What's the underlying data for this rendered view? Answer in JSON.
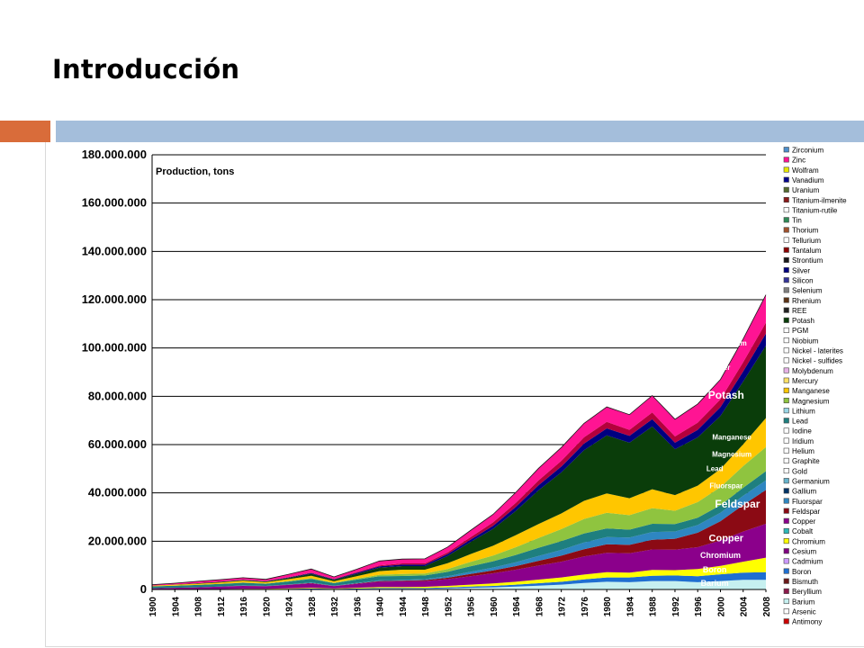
{
  "slide": {
    "title": "Introducción"
  },
  "colors": {
    "accent_orange": "#d96c3a",
    "accent_blue": "#a4bedb"
  },
  "chart_data": {
    "type": "area",
    "stacked": true,
    "title": "Production, tons",
    "xlabel": "",
    "ylabel": "",
    "ylim": [
      0,
      180000000
    ],
    "y_ticks": [
      0,
      20000000,
      40000000,
      60000000,
      80000000,
      100000000,
      120000000,
      140000000,
      160000000,
      180000000
    ],
    "y_tick_labels": [
      "0",
      "20.000.000",
      "40.000.000",
      "60.000.000",
      "80.000.000",
      "100.000.000",
      "120.000.000",
      "140.000.000",
      "160.000.000",
      "180.000.000"
    ],
    "x_tick_labels": [
      "1900",
      "1904",
      "1908",
      "1912",
      "1916",
      "1920",
      "1924",
      "1928",
      "1932",
      "1936",
      "1940",
      "1944",
      "1948",
      "1952",
      "1956",
      "1960",
      "1964",
      "1968",
      "1972",
      "1976",
      "1980",
      "1984",
      "1988",
      "1992",
      "1996",
      "2000",
      "2004",
      "2008"
    ],
    "grid": true,
    "legend_position": "right",
    "x": [
      1900,
      1904,
      1908,
      1912,
      1916,
      1920,
      1924,
      1928,
      1932,
      1936,
      1940,
      1944,
      1948,
      1952,
      1956,
      1960,
      1964,
      1968,
      1972,
      1976,
      1980,
      1984,
      1988,
      1992,
      1996,
      2000,
      2004,
      2008
    ],
    "series": [
      {
        "name": "Barium",
        "color": "#c6f0f0",
        "values": [
          0,
          0,
          0,
          0.1,
          0.1,
          0.1,
          0.2,
          0.2,
          0.1,
          0.2,
          0.3,
          0.3,
          0.3,
          0.5,
          0.7,
          0.9,
          1.2,
          1.6,
          2.0,
          2.7,
          3.2,
          3.0,
          3.5,
          3.5,
          3.0,
          3.5,
          4.0,
          4.0
        ]
      },
      {
        "name": "Boron",
        "color": "#1f6fd1",
        "values": [
          0,
          0,
          0,
          0,
          0.1,
          0.1,
          0.1,
          0.2,
          0.2,
          0.2,
          0.3,
          0.3,
          0.3,
          0.4,
          0.5,
          0.6,
          0.8,
          1.0,
          1.2,
          1.5,
          1.8,
          2.0,
          2.2,
          2.3,
          2.5,
          2.8,
          3.0,
          3.2
        ]
      },
      {
        "name": "Chromium",
        "color": "#ffff00",
        "values": [
          0,
          0.1,
          0.1,
          0.1,
          0.1,
          0.1,
          0.2,
          0.3,
          0.1,
          0.3,
          0.4,
          0.4,
          0.5,
          0.6,
          0.8,
          1.0,
          1.2,
          1.5,
          1.8,
          2.0,
          2.2,
          2.0,
          2.4,
          2.2,
          3.0,
          3.5,
          4.5,
          6.0
        ]
      },
      {
        "name": "Copper",
        "color": "#8b008b",
        "values": [
          0.5,
          0.6,
          0.8,
          1.0,
          1.2,
          1.0,
          1.4,
          1.8,
          1.0,
          1.6,
          2.2,
          2.4,
          2.4,
          2.8,
          3.5,
          4.2,
          5.0,
          5.8,
          6.5,
          7.5,
          8.0,
          8.0,
          8.5,
          8.5,
          9.0,
          10.5,
          12.5,
          14.0
        ]
      },
      {
        "name": "Feldspar",
        "color": "#8b0a14",
        "values": [
          0,
          0,
          0,
          0,
          0.1,
          0.1,
          0.1,
          0.2,
          0.1,
          0.2,
          0.3,
          0.3,
          0.4,
          0.6,
          0.9,
          1.2,
          1.5,
          2.0,
          2.5,
          3.0,
          3.5,
          3.5,
          4.0,
          4.5,
          6.0,
          8.0,
          11.0,
          14.0
        ]
      },
      {
        "name": "Fluorspar",
        "color": "#2e86c1",
        "values": [
          0,
          0,
          0,
          0,
          0.1,
          0.1,
          0.1,
          0.2,
          0.1,
          0.2,
          0.3,
          0.3,
          0.4,
          0.6,
          0.9,
          1.2,
          1.6,
          2.0,
          2.4,
          2.8,
          3.0,
          3.0,
          3.2,
          3.0,
          3.2,
          3.5,
          3.8,
          4.0
        ]
      },
      {
        "name": "Lead",
        "color": "#1e7f7f",
        "values": [
          0.8,
          0.9,
          1.0,
          1.1,
          1.1,
          0.9,
          1.2,
          1.5,
          1.0,
          1.4,
          1.7,
          1.6,
          1.5,
          1.8,
          2.3,
          2.6,
          3.0,
          3.4,
          3.6,
          3.7,
          3.6,
          3.3,
          3.4,
          3.1,
          3.0,
          3.1,
          3.3,
          3.8
        ]
      },
      {
        "name": "Magnesium",
        "color": "#8fc43f",
        "values": [
          0,
          0,
          0,
          0,
          0.1,
          0.1,
          0.2,
          0.3,
          0.2,
          0.4,
          0.6,
          0.8,
          0.8,
          1.2,
          1.8,
          2.4,
          3.2,
          4.0,
          5.0,
          6.0,
          6.5,
          6.0,
          6.5,
          5.5,
          6.5,
          7.5,
          9.0,
          10.0
        ]
      },
      {
        "name": "Manganese",
        "color": "#ffc600",
        "values": [
          0.3,
          0.4,
          0.5,
          0.6,
          0.7,
          0.5,
          0.8,
          1.0,
          0.6,
          1.0,
          1.5,
          1.8,
          1.6,
          2.4,
          3.2,
          4.0,
          5.0,
          5.8,
          6.5,
          7.5,
          8.0,
          7.0,
          7.8,
          6.5,
          6.8,
          7.5,
          9.0,
          12.0
        ]
      },
      {
        "name": "Potash",
        "color": "#0a3d0a",
        "values": [
          0,
          0.1,
          0.2,
          0.3,
          0.3,
          0.3,
          0.5,
          0.8,
          0.6,
          1.0,
          1.5,
          1.5,
          1.5,
          3.0,
          5.0,
          7.0,
          10.0,
          14.0,
          17.0,
          21.0,
          24.0,
          23.0,
          26.0,
          19.0,
          20.0,
          22.0,
          26.0,
          30.0
        ]
      },
      {
        "name": "Silver",
        "color": "#000080",
        "values": [
          0,
          0,
          0,
          0,
          0.1,
          0.1,
          0.2,
          0.3,
          0.2,
          0.4,
          0.5,
          0.6,
          0.6,
          0.8,
          1.0,
          1.3,
          1.7,
          2.1,
          2.4,
          2.7,
          2.9,
          2.8,
          3.0,
          2.7,
          3.1,
          3.6,
          4.2,
          5.0
        ]
      },
      {
        "name": "Titanium",
        "color": "#b4003c",
        "values": [
          0,
          0,
          0,
          0,
          0.1,
          0.1,
          0.1,
          0.2,
          0.2,
          0.3,
          0.4,
          0.5,
          0.5,
          0.7,
          1.0,
          1.4,
          1.7,
          2.0,
          2.4,
          2.6,
          2.7,
          2.5,
          2.8,
          2.6,
          3.0,
          3.3,
          3.8,
          4.5
        ]
      },
      {
        "name": "Zinc",
        "color": "#ff1493",
        "values": [
          0.4,
          0.5,
          0.8,
          0.9,
          0.8,
          0.7,
          1.2,
          1.5,
          0.8,
          1.2,
          1.8,
          1.8,
          1.9,
          2.2,
          2.8,
          3.3,
          4.3,
          5.0,
          5.5,
          5.8,
          6.2,
          6.3,
          7.0,
          7.1,
          7.7,
          8.2,
          9.6,
          11.5
        ]
      }
    ],
    "series_unit": "million tons",
    "annotations": [
      {
        "text": "Zinc",
        "x": 2001,
        "y": 106,
        "size": 9
      },
      {
        "text": "Titanium",
        "x": 2002,
        "y": 101,
        "size": 8
      },
      {
        "text": "Silver",
        "x": 2000,
        "y": 91,
        "size": 8
      },
      {
        "text": "Potash",
        "x": 2001,
        "y": 79,
        "size": 12
      },
      {
        "text": "Manganese",
        "x": 2002,
        "y": 62,
        "size": 8
      },
      {
        "text": "Magnesium",
        "x": 2002,
        "y": 55,
        "size": 8
      },
      {
        "text": "Lead",
        "x": 1999,
        "y": 49,
        "size": 8
      },
      {
        "text": "Fluorspar",
        "x": 2001,
        "y": 42,
        "size": 8
      },
      {
        "text": "Feldspar",
        "x": 2003,
        "y": 34,
        "size": 12
      },
      {
        "text": "Copper",
        "x": 2001,
        "y": 20,
        "size": 11
      },
      {
        "text": "Chromium",
        "x": 2000,
        "y": 13,
        "size": 9
      },
      {
        "text": "Boron",
        "x": 1999,
        "y": 7,
        "size": 9
      },
      {
        "text": "Barium",
        "x": 1999,
        "y": 1.5,
        "size": 9
      }
    ],
    "legend": [
      {
        "name": "Zirconium",
        "color": "#4d8fcc"
      },
      {
        "name": "Zinc",
        "color": "#ff1493"
      },
      {
        "name": "Wolfram",
        "color": "#e6e600"
      },
      {
        "name": "Vanadium",
        "color": "#00008b"
      },
      {
        "name": "Uranium",
        "color": "#556b2f"
      },
      {
        "name": "Titanium-ilmenite",
        "color": "#8b1a1a"
      },
      {
        "name": "Titanium-rutile",
        "color": "#ffffff"
      },
      {
        "name": "Tin",
        "color": "#2e8b57"
      },
      {
        "name": "Thorium",
        "color": "#a0522d"
      },
      {
        "name": "Tellurium",
        "color": "#ffffff"
      },
      {
        "name": "Tantalum",
        "color": "#8b0000"
      },
      {
        "name": "Strontium",
        "color": "#1a1a1a"
      },
      {
        "name": "Silver",
        "color": "#000080"
      },
      {
        "name": "Silicon",
        "color": "#333399"
      },
      {
        "name": "Selenium",
        "color": "#7f7f7f"
      },
      {
        "name": "Rhenium",
        "color": "#5c3317"
      },
      {
        "name": "REE",
        "color": "#222222"
      },
      {
        "name": "Potash",
        "color": "#0a3d0a"
      },
      {
        "name": "PGM",
        "color": "#ffffff"
      },
      {
        "name": "Niobium",
        "color": "#ffffff"
      },
      {
        "name": "Nickel - laterites",
        "color": "#ffffff"
      },
      {
        "name": "Nickel - sulfides",
        "color": "#ffffff"
      },
      {
        "name": "Molybdenum",
        "color": "#e6b0e6"
      },
      {
        "name": "Mercury",
        "color": "#ffe066"
      },
      {
        "name": "Manganese",
        "color": "#ffc600"
      },
      {
        "name": "Magnesium",
        "color": "#8fc43f"
      },
      {
        "name": "Lithium",
        "color": "#99d6e6"
      },
      {
        "name": "Lead",
        "color": "#1e7f7f"
      },
      {
        "name": "Iodine",
        "color": "#ffffff"
      },
      {
        "name": "Iridium",
        "color": "#ffffff"
      },
      {
        "name": "Helium",
        "color": "#ffffff"
      },
      {
        "name": "Graphite",
        "color": "#ffffff"
      },
      {
        "name": "Gold",
        "color": "#ffffff"
      },
      {
        "name": "Germanium",
        "color": "#66b3cc"
      },
      {
        "name": "Gallium",
        "color": "#003366"
      },
      {
        "name": "Fluorspar",
        "color": "#2e86c1"
      },
      {
        "name": "Feldspar",
        "color": "#8b0a14"
      },
      {
        "name": "Copper",
        "color": "#8b008b"
      },
      {
        "name": "Cobalt",
        "color": "#2eb8b8"
      },
      {
        "name": "Chromium",
        "color": "#ffff00"
      },
      {
        "name": "Cesium",
        "color": "#800080"
      },
      {
        "name": "Cadmium",
        "color": "#cc99ff"
      },
      {
        "name": "Boron",
        "color": "#1f6fd1"
      },
      {
        "name": "Bismuth",
        "color": "#6b1a1a"
      },
      {
        "name": "Beryllium",
        "color": "#8b1a4a"
      },
      {
        "name": "Barium",
        "color": "#c6f0f0"
      },
      {
        "name": "Arsenic",
        "color": "#ffffff"
      },
      {
        "name": "Antimony",
        "color": "#cc0000"
      }
    ]
  }
}
